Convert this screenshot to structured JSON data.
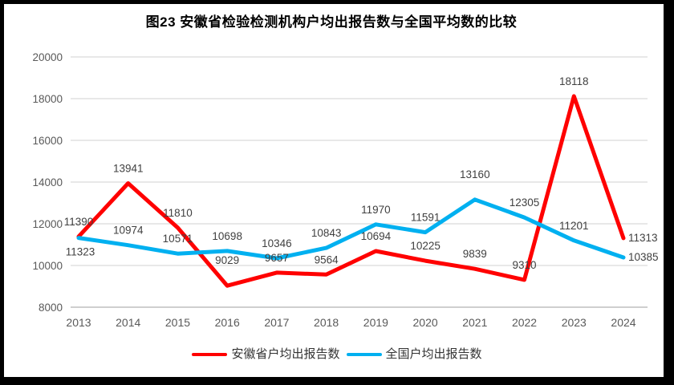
{
  "title": "图23 安徽省检验检测机构户均出报告数与全国平均数的比较",
  "chart_data": {
    "type": "line",
    "categories": [
      "2013",
      "2014",
      "2015",
      "2016",
      "2017",
      "2018",
      "2019",
      "2020",
      "2021",
      "2022",
      "2023",
      "2024"
    ],
    "series": [
      {
        "name": "安徽省户均出报告数",
        "color": "#FF0000",
        "values": [
          11390,
          13941,
          11810,
          9029,
          9657,
          9564,
          10694,
          10225,
          9839,
          9310,
          18118,
          11313
        ],
        "label_pos": [
          "above",
          "above",
          "above",
          "above-high",
          "above",
          "above",
          "above",
          "above",
          "above",
          "above",
          "above",
          "right"
        ]
      },
      {
        "name": "全国户均出报告数",
        "color": "#00B0F0",
        "values": [
          11323,
          10974,
          10571,
          10698,
          10346,
          10843,
          11970,
          11591,
          13160,
          12305,
          11201,
          10385
        ],
        "label_pos": [
          "below",
          "above",
          "above",
          "above",
          "above",
          "above",
          "above",
          "above",
          "above-high",
          "above",
          "above",
          "right"
        ]
      }
    ],
    "ylim": [
      8000,
      20000
    ],
    "ytick_step": 2000,
    "ytick_labels": [
      "8000",
      "10000",
      "12000",
      "14000",
      "16000",
      "18000",
      "20000"
    ],
    "grid": true,
    "legend_position": "bottom",
    "colors": {
      "gridline": "#D9D9D9",
      "axis_line": "#BFBFBF",
      "tick_label": "#595959",
      "data_label": "#404040",
      "frame_border": "#000000",
      "background": "#FFFFFF"
    }
  }
}
